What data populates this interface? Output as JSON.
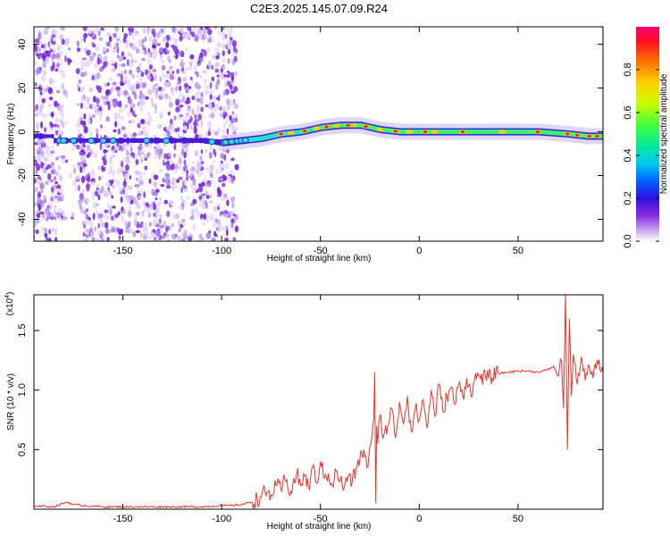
{
  "colors": {
    "snr_line": "#e8342c",
    "noise_purple": "#7a2be0",
    "track_blue": "#2a2ad8",
    "track_cyan": "#2fe0c8",
    "track_red": "#e8283a"
  },
  "chart_data": [
    {
      "type": "heatmap",
      "title": "C2E3.2025.145.07.09.R24",
      "xlabel": "Height of straight line (km)",
      "ylabel": "Frequency (Hz)",
      "xlim": [
        -195,
        93
      ],
      "ylim": [
        -50,
        48
      ],
      "xticks": [
        -150,
        -100,
        -50,
        0,
        50
      ],
      "xtick_labels": [
        "-150",
        "-100",
        "-50",
        "0",
        "50"
      ],
      "yticks": [
        -40,
        -20,
        0,
        20,
        40
      ],
      "ytick_labels": [
        "-40",
        "-20",
        "0",
        "20",
        "40"
      ],
      "colorbar": {
        "label": "Normalized spectral amplitude",
        "range": [
          0.0,
          1.0
        ],
        "ticks": [
          0.0,
          0.2,
          0.4,
          0.6,
          0.8
        ],
        "tick_labels": [
          "0.0",
          "0.2",
          "0.4",
          "0.6",
          "0.8"
        ],
        "colormap": [
          "#ffffff",
          "#c8a8f0",
          "#8a2be2",
          "#3010e0",
          "#0060ff",
          "#00c8f0",
          "#00e8a0",
          "#40ff40",
          "#c8ff00",
          "#ffd000",
          "#ff7000",
          "#ff1020",
          "#ff0070"
        ]
      },
      "noise_region_x": [
        -195,
        -92
      ],
      "track": {
        "x": [
          -185,
          -165,
          -150,
          -130,
          -110,
          -100,
          -90,
          -80,
          -70,
          -60,
          -50,
          -40,
          -30,
          -25,
          -20,
          -10,
          0,
          20,
          40,
          60,
          75,
          85,
          93
        ],
        "freq": [
          -4,
          -4,
          -4,
          -4,
          -4,
          -5,
          -4,
          -3,
          -1,
          0,
          2,
          3,
          3,
          2,
          1,
          0,
          0,
          0,
          0,
          0,
          -1,
          -2,
          -2
        ]
      }
    },
    {
      "type": "line",
      "xlabel": "Height of straight line (km)",
      "ylabel": "SNR (10 * v/v)",
      "y_exponent_label": "(x10",
      "y_exponent_power": "4",
      "y_exponent_close": ")",
      "xlim": [
        -195,
        93
      ],
      "ylim": [
        0,
        1.8
      ],
      "xticks": [
        -150,
        -100,
        -50,
        0,
        50
      ],
      "xtick_labels": [
        "-150",
        "-100",
        "-50",
        "0",
        "50"
      ],
      "yticks": [
        0.5,
        1.0,
        1.5
      ],
      "ytick_labels": [
        "0.5",
        "1.0",
        "1.5"
      ],
      "series": [
        {
          "name": "SNR",
          "x": [
            -195,
            -185,
            -180,
            -178,
            -175,
            -170,
            -160,
            -150,
            -140,
            -130,
            -120,
            -110,
            -100,
            -95,
            -90,
            -85,
            -80,
            -78,
            -75,
            -72,
            -70,
            -68,
            -65,
            -62,
            -60,
            -58,
            -56,
            -54,
            -52,
            -50,
            -48,
            -46,
            -44,
            -42,
            -40,
            -38,
            -36,
            -34,
            -32,
            -30,
            -28,
            -26,
            -24,
            -23,
            -22.5,
            -22,
            -21.5,
            -21,
            -20,
            -18,
            -16,
            -14,
            -12,
            -10,
            -8,
            -6,
            -4,
            -2,
            0,
            2,
            4,
            6,
            8,
            10,
            12,
            14,
            16,
            18,
            20,
            22,
            24,
            26,
            28,
            30,
            35,
            40,
            45,
            50,
            55,
            60,
            65,
            68,
            70,
            72,
            73,
            74,
            75,
            76,
            77,
            78,
            80,
            82,
            84,
            86,
            88,
            90,
            93
          ],
          "values": [
            0.03,
            0.02,
            0.05,
            0.06,
            0.04,
            0.03,
            0.02,
            0.02,
            0.02,
            0.02,
            0.02,
            0.02,
            0.03,
            0.03,
            0.04,
            0.06,
            0.1,
            0.14,
            0.12,
            0.2,
            0.16,
            0.25,
            0.15,
            0.3,
            0.2,
            0.28,
            0.18,
            0.35,
            0.22,
            0.4,
            0.26,
            0.3,
            0.2,
            0.32,
            0.24,
            0.18,
            0.28,
            0.22,
            0.34,
            0.42,
            0.5,
            0.35,
            0.6,
            0.75,
            1.15,
            0.05,
            0.7,
            0.55,
            0.78,
            0.62,
            0.7,
            0.85,
            0.6,
            0.9,
            0.72,
            0.95,
            0.65,
            0.85,
            0.75,
            0.92,
            0.68,
            1.0,
            0.78,
            1.05,
            0.82,
            0.95,
            1.02,
            0.88,
            1.05,
            0.95,
            1.1,
            0.98,
            1.08,
            1.12,
            1.1,
            1.14,
            1.15,
            1.16,
            1.16,
            1.15,
            1.17,
            1.2,
            1.12,
            1.25,
            0.85,
            1.82,
            0.5,
            1.6,
            0.95,
            1.3,
            1.05,
            1.28,
            1.08,
            1.2,
            1.1,
            1.25,
            1.15
          ]
        }
      ]
    }
  ]
}
